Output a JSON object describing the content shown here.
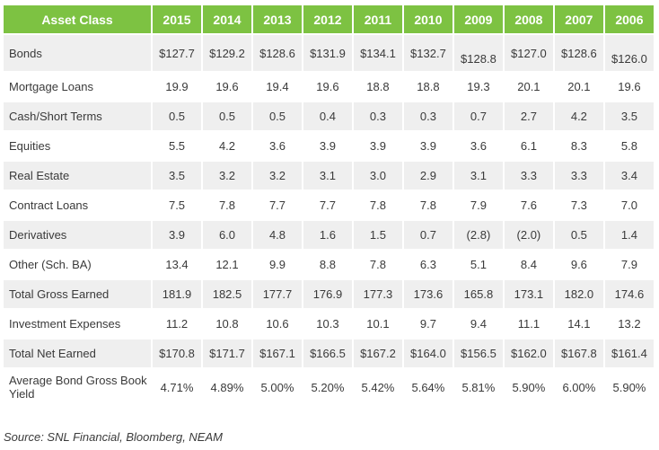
{
  "table": {
    "header": {
      "label": "Asset Class",
      "years": [
        "2015",
        "2014",
        "2013",
        "2012",
        "2011",
        "2010",
        "2009",
        "2008",
        "2007",
        "2006"
      ]
    },
    "rows": [
      {
        "label": "Bonds",
        "values": [
          "$127.7",
          "$129.2",
          "$128.6",
          "$131.9",
          "$134.1",
          "$132.7",
          "$128.8",
          "$127.0",
          "$128.6",
          "$126.0"
        ]
      },
      {
        "label": "Mortgage Loans",
        "values": [
          "19.9",
          "19.6",
          "19.4",
          "19.6",
          "18.8",
          "18.8",
          "19.3",
          "20.1",
          "20.1",
          "19.6"
        ]
      },
      {
        "label": "Cash/Short Terms",
        "values": [
          "0.5",
          "0.5",
          "0.5",
          "0.4",
          "0.3",
          "0.3",
          "0.7",
          "2.7",
          "4.2",
          "3.5"
        ]
      },
      {
        "label": "Equities",
        "values": [
          "5.5",
          "4.2",
          "3.6",
          "3.9",
          "3.9",
          "3.9",
          "3.6",
          "6.1",
          "8.3",
          "5.8"
        ]
      },
      {
        "label": "Real Estate",
        "values": [
          "3.5",
          "3.2",
          "3.2",
          "3.1",
          "3.0",
          "2.9",
          "3.1",
          "3.3",
          "3.3",
          "3.4"
        ]
      },
      {
        "label": "Contract Loans",
        "values": [
          "7.5",
          "7.8",
          "7.7",
          "7.7",
          "7.8",
          "7.8",
          "7.9",
          "7.6",
          "7.3",
          "7.0"
        ]
      },
      {
        "label": "Derivatives",
        "values": [
          "3.9",
          "6.0",
          "4.8",
          "1.6",
          "1.5",
          "0.7",
          "(2.8)",
          "(2.0)",
          "0.5",
          "1.4"
        ]
      },
      {
        "label": "Other (Sch. BA)",
        "values": [
          "13.4",
          "12.1",
          "9.9",
          "8.8",
          "7.8",
          "6.3",
          "5.1",
          "8.4",
          "9.6",
          "7.9"
        ]
      },
      {
        "label": "Total Gross Earned",
        "values": [
          "181.9",
          "182.5",
          "177.7",
          "176.9",
          "177.3",
          "173.6",
          "165.8",
          "173.1",
          "182.0",
          "174.6"
        ]
      },
      {
        "label": "Investment Expenses",
        "values": [
          "11.2",
          "10.8",
          "10.6",
          "10.3",
          "10.1",
          "9.7",
          "9.4",
          "11.1",
          "14.1",
          "13.2"
        ]
      },
      {
        "label": "Total Net Earned",
        "values": [
          "$170.8",
          "$171.7",
          "$167.1",
          "$166.5",
          "$167.2",
          "$164.0",
          "$156.5",
          "$162.0",
          "$167.8",
          "$161.4"
        ]
      },
      {
        "label": "Average Bond Gross Book Yield",
        "values": [
          "4.71%",
          "4.89%",
          "5.00%",
          "5.20%",
          "5.42%",
          "5.64%",
          "5.81%",
          "5.90%",
          "6.00%",
          "5.90%"
        ]
      }
    ]
  },
  "source": "Source: SNL Financial, Bloomberg, NEAM",
  "colors": {
    "header_bg": "#7dc242",
    "row_shade": "#efefef"
  }
}
